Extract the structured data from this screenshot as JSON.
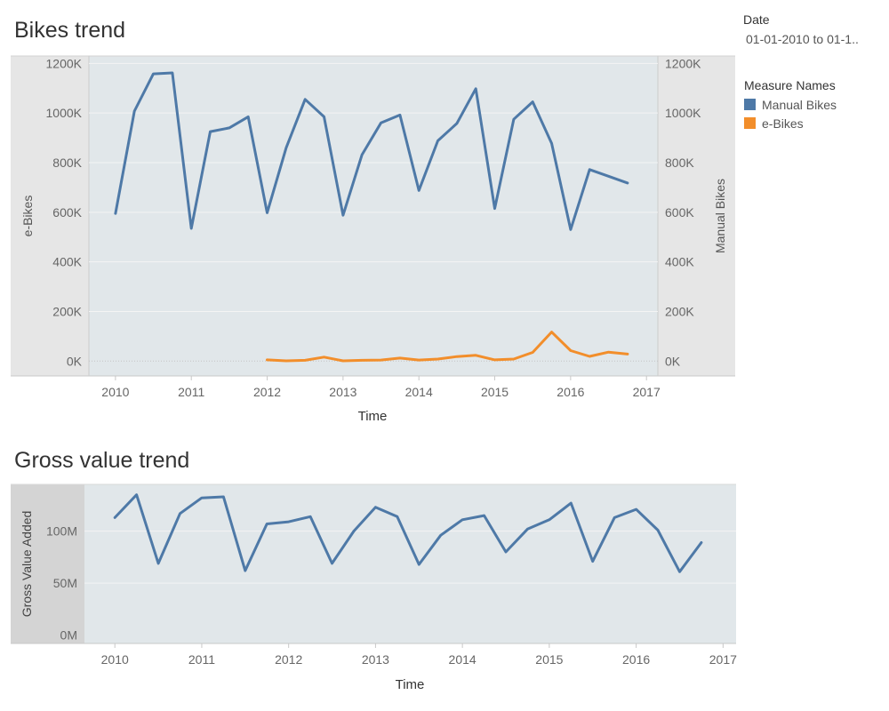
{
  "filters": {
    "date": {
      "label": "Date",
      "value": "01-01-2010 to 01-1.."
    }
  },
  "legend": {
    "title": "Measure Names",
    "items": [
      {
        "label": "Manual Bikes",
        "color": "#4e79a7"
      },
      {
        "label": "e-Bikes",
        "color": "#f28e2b"
      }
    ]
  },
  "chart_data": [
    {
      "type": "line",
      "title": "Bikes trend",
      "xlabel": "Time",
      "ylabel_left": "e-Bikes",
      "ylabel_right": "Manual Bikes",
      "xlim": [
        2009.65,
        2017.15
      ],
      "ylim": [
        -60000,
        1230000
      ],
      "x_ticks": [
        2010,
        2011,
        2012,
        2013,
        2014,
        2015,
        2016,
        2017
      ],
      "y_ticks": [
        0,
        200000,
        400000,
        600000,
        800000,
        1000000,
        1200000
      ],
      "y_tick_labels": [
        "0K",
        "200K",
        "400K",
        "600K",
        "800K",
        "1000K",
        "1200K"
      ],
      "grid": true,
      "legend_position": "right",
      "series": [
        {
          "name": "Manual Bikes",
          "color": "#4e79a7",
          "x": [
            2010.0,
            2010.25,
            2010.5,
            2010.75,
            2011.0,
            2011.25,
            2011.5,
            2011.75,
            2012.0,
            2012.25,
            2012.5,
            2012.75,
            2013.0,
            2013.25,
            2013.5,
            2013.75,
            2014.0,
            2014.25,
            2014.5,
            2014.75,
            2015.0,
            2015.25,
            2015.5,
            2015.75,
            2016.0,
            2016.25,
            2016.5,
            2016.75
          ],
          "values": [
            595000,
            1008000,
            1158000,
            1162000,
            535000,
            925000,
            940000,
            985000,
            598000,
            860000,
            1055000,
            985000,
            588000,
            832000,
            960000,
            992000,
            688000,
            888000,
            958000,
            1098000,
            615000,
            975000,
            1045000,
            878000,
            530000,
            772000,
            745000,
            718000
          ]
        },
        {
          "name": "e-Bikes",
          "color": "#f28e2b",
          "x": [
            2012.0,
            2012.25,
            2012.5,
            2012.75,
            2013.0,
            2013.25,
            2013.5,
            2013.75,
            2014.0,
            2014.25,
            2014.5,
            2014.75,
            2015.0,
            2015.25,
            2015.5,
            2015.75,
            2016.0,
            2016.25,
            2016.5,
            2016.75
          ],
          "values": [
            5000,
            1000,
            3000,
            16000,
            1000,
            3000,
            4000,
            12000,
            4000,
            8000,
            18000,
            23000,
            5000,
            8000,
            35000,
            117000,
            42000,
            19000,
            36000,
            28000
          ]
        }
      ]
    },
    {
      "type": "line",
      "title": "Gross value trend",
      "xlabel": "Time",
      "ylabel": "Gross Value Added",
      "xlim": [
        2009.65,
        2017.15
      ],
      "ylim": [
        -8000000,
        145000000
      ],
      "x_ticks": [
        2010,
        2011,
        2012,
        2013,
        2014,
        2015,
        2016,
        2017
      ],
      "y_ticks": [
        0,
        50000000,
        100000000
      ],
      "y_tick_labels": [
        "0M",
        "50M",
        "100M"
      ],
      "grid": true,
      "series": [
        {
          "name": "Gross Value Added",
          "color": "#4e79a7",
          "x": [
            2010.0,
            2010.25,
            2010.5,
            2010.75,
            2011.0,
            2011.25,
            2011.5,
            2011.75,
            2012.0,
            2012.25,
            2012.5,
            2012.75,
            2013.0,
            2013.25,
            2013.5,
            2013.75,
            2014.0,
            2014.25,
            2014.5,
            2014.75,
            2015.0,
            2015.25,
            2015.5,
            2015.75,
            2016.0,
            2016.25,
            2016.5,
            2016.75
          ],
          "values": [
            113000000,
            135000000,
            69000000,
            117000000,
            132000000,
            133000000,
            62000000,
            107000000,
            109000000,
            114000000,
            69000000,
            100000000,
            123000000,
            114000000,
            68000000,
            96000000,
            111000000,
            115000000,
            80000000,
            102000000,
            111000000,
            127000000,
            71000000,
            113000000,
            121000000,
            101000000,
            61000000,
            89000000
          ]
        }
      ]
    }
  ]
}
